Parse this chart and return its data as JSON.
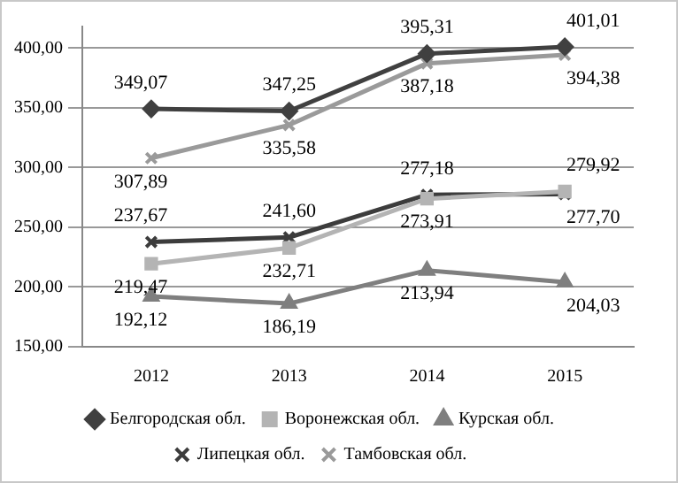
{
  "chart_data": {
    "type": "line",
    "categories": [
      "2012",
      "2013",
      "2014",
      "2015"
    ],
    "series": [
      {
        "name": "Белгородская обл.",
        "color": "#404040",
        "marker": "diamond",
        "values": [
          349.07,
          347.25,
          395.31,
          401.01
        ],
        "value_labels": [
          "349,07",
          "347,25",
          "395,31",
          "401,01"
        ]
      },
      {
        "name": "Воронежская обл.",
        "color": "#b4b4b4",
        "marker": "square",
        "values": [
          219.47,
          232.71,
          273.91,
          279.92
        ],
        "value_labels": [
          "219,47",
          "232,71",
          "273,91",
          "279,92"
        ]
      },
      {
        "name": "Курская обл.",
        "color": "#7f7f7f",
        "marker": "triangle",
        "values": [
          192.12,
          186.19,
          213.94,
          204.03
        ],
        "value_labels": [
          "192,12",
          "186,19",
          "213,94",
          "204,03"
        ]
      },
      {
        "name": "Липецкая обл.",
        "color": "#3c3c3c",
        "marker": "cross",
        "values": [
          237.67,
          241.6,
          277.18,
          277.7
        ],
        "value_labels": [
          "237,67",
          "241,60",
          "277,18",
          "277,70"
        ]
      },
      {
        "name": "Тамбовская обл.",
        "color": "#9a9a9a",
        "marker": "cross",
        "values": [
          307.89,
          335.58,
          387.18,
          394.38
        ],
        "value_labels": [
          "307,89",
          "335,58",
          "387,18",
          "394,38"
        ]
      }
    ],
    "ylim": [
      150,
      418
    ],
    "yticks": [
      {
        "value": 150,
        "label": "150,00"
      },
      {
        "value": 200,
        "label": "200,00"
      },
      {
        "value": 250,
        "label": "250,00"
      },
      {
        "value": 300,
        "label": "300,00"
      },
      {
        "value": 350,
        "label": "350,00"
      },
      {
        "value": 400,
        "label": "400,00"
      }
    ],
    "grid": "y",
    "legend": "bottom"
  }
}
